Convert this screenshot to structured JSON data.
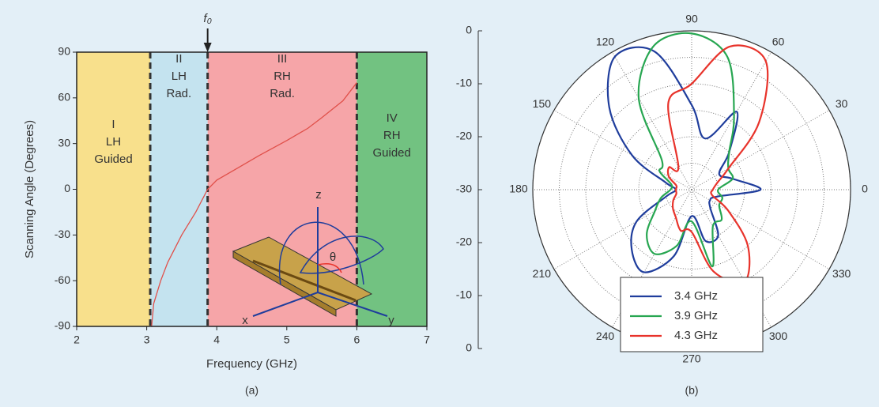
{
  "chart_data": [
    {
      "type": "line",
      "caption": "(a)",
      "xlabel": "Frequency (GHz)",
      "ylabel": "Scanning Angle (Degrees)",
      "xlim": [
        2,
        7
      ],
      "xticks": [
        2,
        3,
        4,
        5,
        6,
        7
      ],
      "ylim": [
        -90,
        90
      ],
      "yticks": [
        -90,
        -60,
        -30,
        0,
        30,
        60,
        90
      ],
      "regions": [
        {
          "label": [
            "I",
            "LH",
            "Guided"
          ],
          "from": 2,
          "to": 3.05,
          "color": "#f8e08c"
        },
        {
          "label": [
            "II",
            "LH",
            "Rad."
          ],
          "from": 3.05,
          "to": 3.87,
          "color": "#c4e3ef"
        },
        {
          "label": [
            "III",
            "RH",
            "Rad."
          ],
          "from": 3.87,
          "to": 6.0,
          "color": "#f6a5a8"
        },
        {
          "label": [
            "IV",
            "RH",
            "Guided"
          ],
          "from": 6.0,
          "to": 7,
          "color": "#72c281"
        }
      ],
      "marker": {
        "label": "f₀",
        "x": 3.87
      },
      "inset_labels": [
        "z",
        "x",
        "y",
        "θ"
      ],
      "series": [
        {
          "color": "#e0504a",
          "x": [
            3.07,
            3.1,
            3.2,
            3.3,
            3.5,
            3.7,
            3.87,
            4.0,
            4.3,
            4.6,
            5.0,
            5.3,
            5.5,
            5.8,
            6.0
          ],
          "values": [
            -90,
            -75,
            -60,
            -48,
            -30,
            -15,
            0,
            6,
            14,
            22,
            32,
            40,
            47,
            58,
            70
          ]
        }
      ]
    },
    {
      "type": "polar",
      "caption": "(b)",
      "rlim": [
        -30,
        0
      ],
      "rticks": [
        -30,
        -20,
        -10,
        0
      ],
      "rgrid": [
        -25,
        -20,
        -15,
        -10,
        -5,
        0
      ],
      "thetaticks": [
        0,
        30,
        60,
        90,
        120,
        150,
        180,
        210,
        240,
        270,
        300,
        330
      ],
      "theta": [
        0,
        15,
        30,
        45,
        60,
        75,
        90,
        105,
        120,
        135,
        150,
        165,
        180,
        195,
        210,
        225,
        240,
        255,
        270,
        285,
        300,
        315,
        330,
        345
      ],
      "series": [
        {
          "name": "3.4 GHz",
          "color": "#1f3d9c",
          "values": [
            -17,
            -22,
            -24,
            -20,
            -13,
            -20,
            -14,
            -3,
            -1,
            -8,
            -17,
            -25,
            -27,
            -25,
            -18,
            -14,
            -12,
            -17,
            -25,
            -20,
            -20,
            -25,
            -26,
            -25
          ]
        },
        {
          "name": "3.9 GHz",
          "color": "#27a651",
          "values": [
            -25,
            -22,
            -22,
            -20,
            -14,
            -4,
            -0.5,
            -2,
            -10,
            -22,
            -23,
            -26,
            -26,
            -24,
            -22,
            -18,
            -16,
            -19,
            -24,
            -15,
            -22,
            -22,
            -24,
            -24
          ]
        },
        {
          "name": "4.3 GHz",
          "color": "#e8332b",
          "values": [
            -26,
            -25,
            -22,
            -12,
            -2,
            -2,
            -10,
            -13,
            -25,
            -24,
            -25,
            -27,
            -27,
            -27,
            -26,
            -25,
            -24,
            -22,
            -22,
            -14,
            -10,
            -15,
            -22,
            -26
          ]
        }
      ]
    }
  ]
}
